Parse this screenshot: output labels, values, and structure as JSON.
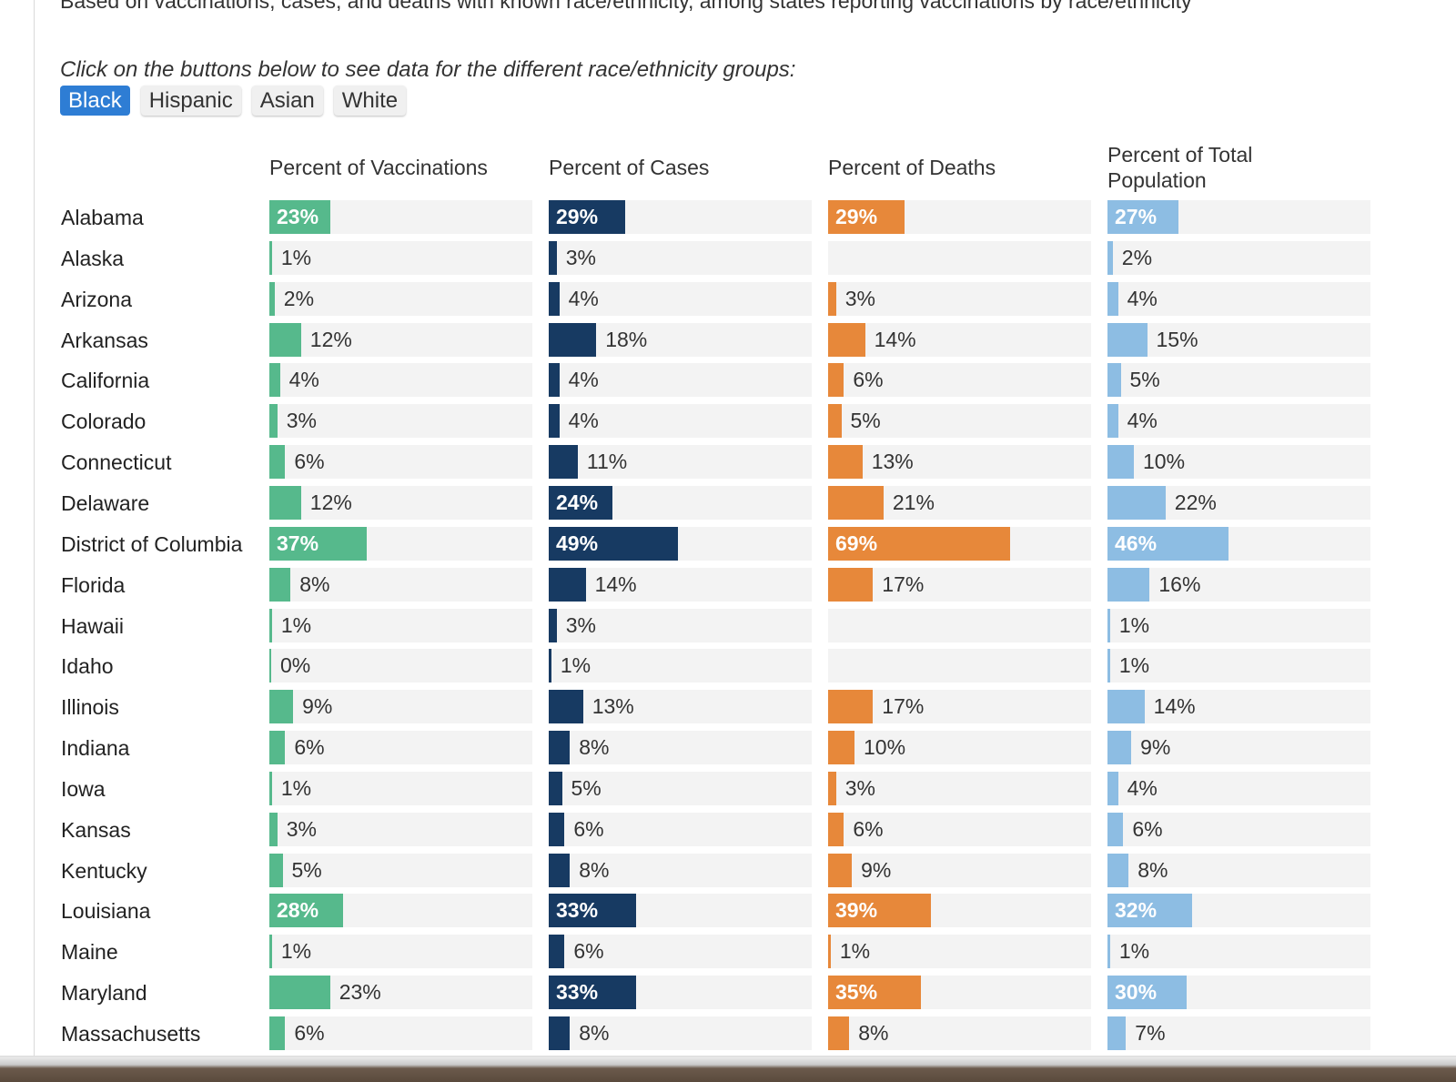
{
  "subtitle": "Based on vaccinations, cases, and deaths with known race/ethnicity, among states reporting vaccinations by race/ethnicity",
  "instruction": "Click on the buttons below to see data for the different race/ethnicity groups:",
  "buttons": [
    "Black",
    "Hispanic",
    "Asian",
    "White"
  ],
  "selected_group": "Black",
  "colors": {
    "vaccinations": "#56b98c",
    "cases": "#173a62",
    "deaths": "#e7883a",
    "population": "#8dbde3",
    "track": "#f3f3f3",
    "active_button": "#2e7dd4"
  },
  "chart_data": {
    "type": "bar",
    "orientation": "horizontal",
    "unit": "%",
    "xlim": [
      0,
      100
    ],
    "categories": [
      "Alabama",
      "Alaska",
      "Arizona",
      "Arkansas",
      "California",
      "Colorado",
      "Connecticut",
      "Delaware",
      "District of Columbia",
      "Florida",
      "Hawaii",
      "Idaho",
      "Illinois",
      "Indiana",
      "Iowa",
      "Kansas",
      "Kentucky",
      "Louisiana",
      "Maine",
      "Maryland",
      "Massachusetts"
    ],
    "series": [
      {
        "name": "Percent of Vaccinations",
        "values": [
          23,
          1,
          2,
          12,
          4,
          3,
          6,
          12,
          37,
          8,
          1,
          0,
          9,
          6,
          1,
          3,
          5,
          28,
          1,
          23,
          6
        ]
      },
      {
        "name": "Percent of Cases",
        "values": [
          29,
          3,
          4,
          18,
          4,
          4,
          11,
          24,
          49,
          14,
          3,
          1,
          13,
          8,
          5,
          6,
          8,
          33,
          6,
          33,
          8
        ]
      },
      {
        "name": "Percent of Deaths",
        "values": [
          29,
          null,
          3,
          14,
          6,
          5,
          13,
          21,
          69,
          17,
          null,
          null,
          17,
          10,
          3,
          6,
          9,
          39,
          1,
          35,
          8
        ]
      },
      {
        "name": "Percent of Total Population",
        "values": [
          27,
          2,
          4,
          15,
          5,
          4,
          10,
          22,
          46,
          16,
          1,
          1,
          14,
          9,
          4,
          6,
          8,
          32,
          1,
          30,
          7
        ]
      }
    ],
    "labels_inside": [
      [
        true,
        false,
        false,
        false,
        false,
        false,
        false,
        false,
        true,
        false,
        false,
        false,
        false,
        false,
        false,
        false,
        false,
        true,
        false,
        false,
        false
      ],
      [
        true,
        false,
        false,
        false,
        false,
        false,
        false,
        true,
        true,
        false,
        false,
        false,
        false,
        false,
        false,
        false,
        false,
        true,
        false,
        true,
        false
      ],
      [
        true,
        false,
        false,
        false,
        false,
        false,
        false,
        false,
        true,
        false,
        false,
        false,
        false,
        false,
        false,
        false,
        false,
        true,
        false,
        true,
        false
      ],
      [
        true,
        false,
        false,
        false,
        false,
        false,
        false,
        false,
        true,
        false,
        false,
        false,
        false,
        false,
        false,
        false,
        false,
        true,
        false,
        true,
        false
      ]
    ]
  }
}
